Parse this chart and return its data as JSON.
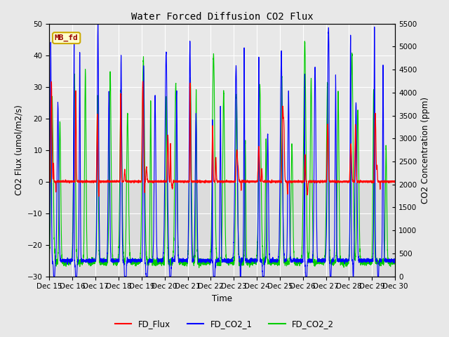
{
  "title": "Water Forced Diffusion CO2 Flux",
  "xlabel": "Time",
  "ylabel_left": "CO2 Flux (umol/m2/s)",
  "ylabel_right": "CO2 Concentration (ppm)",
  "ylim_left": [
    -30,
    50
  ],
  "ylim_right": [
    0,
    5500
  ],
  "yticks_left": [
    -30,
    -20,
    -10,
    0,
    10,
    20,
    30,
    40,
    50
  ],
  "yticks_right": [
    0,
    500,
    1000,
    1500,
    2000,
    2500,
    3000,
    3500,
    4000,
    4500,
    5000,
    5500
  ],
  "xtick_positions": [
    0,
    1,
    2,
    3,
    4,
    5,
    6,
    7,
    8,
    9,
    10,
    11,
    12,
    13,
    14,
    15
  ],
  "xtick_labels": [
    "Dec 15",
    "Dec 16",
    "Dec 17",
    "Dec 18",
    "Dec 19",
    "Dec 20",
    "Dec 21",
    "Dec 22",
    "Dec 23",
    "Dec 24",
    "Dec 25",
    "Dec 26",
    "Dec 27",
    "Dec 28",
    "Dec 29",
    "Dec 30"
  ],
  "legend_labels": [
    "FD_Flux",
    "FD_CO2_1",
    "FD_CO2_2"
  ],
  "flux_color": "#ff0000",
  "co2_1_color": "#0000ff",
  "co2_2_color": "#00cc00",
  "annotation_text": "MB_fd",
  "annotation_facecolor": "#ffffcc",
  "annotation_edgecolor": "#ccaa00",
  "annotation_textcolor": "#990000",
  "fig_facecolor": "#e8e8e8",
  "plot_bg_light": "#e8e8e8",
  "plot_bg_dark": "#d0d0d0",
  "grid_color": "#ffffff",
  "seed": 42,
  "n_days": 15,
  "n_pts": 300
}
